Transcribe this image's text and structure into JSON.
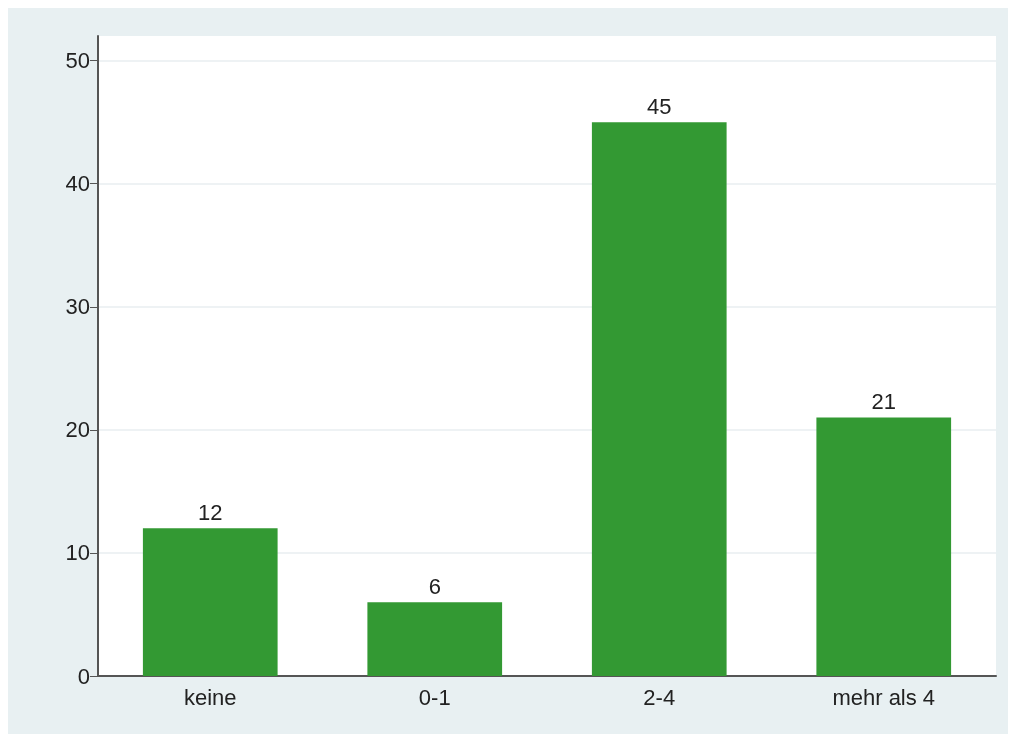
{
  "chart_data": {
    "type": "bar",
    "categories": [
      "keine",
      "0-1",
      "2-4",
      "mehr als 4"
    ],
    "values": [
      12,
      6,
      45,
      21
    ],
    "color": "#339933",
    "ylim": [
      0,
      52
    ],
    "yticks": [
      0,
      10,
      20,
      30,
      40,
      50
    ],
    "grid": "y",
    "data_labels": true
  }
}
